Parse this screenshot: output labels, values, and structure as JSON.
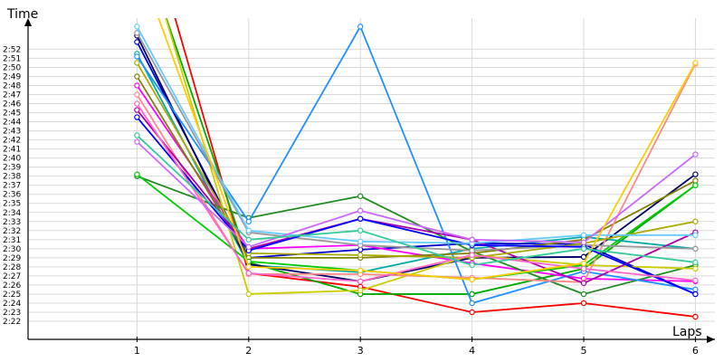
{
  "chart_data": {
    "type": "line",
    "ylabel": "Time",
    "xlabel": "Laps",
    "x": [
      1,
      2,
      3,
      4,
      5,
      6
    ],
    "x_ticks": [
      "1",
      "2",
      "3",
      "4",
      "5",
      "6"
    ],
    "y_ticks": [
      "2:22",
      "2:23",
      "2:24",
      "2:25",
      "2:26",
      "2:27",
      "2:28",
      "2:29",
      "2:30",
      "2:31",
      "2:32",
      "2:33",
      "2:34",
      "2:35",
      "2:36",
      "2:37",
      "2:38",
      "2:39",
      "2:40",
      "2:41",
      "2:42",
      "2:43",
      "2:44",
      "2:45",
      "2:46",
      "2:47",
      "2:48",
      "2:49",
      "2:50",
      "2:51",
      "2:52"
    ],
    "y_tick_values": [
      142,
      143,
      144,
      145,
      146,
      147,
      148,
      149,
      150,
      151,
      152,
      153,
      154,
      155,
      156,
      157,
      158,
      159,
      160,
      161,
      162,
      163,
      164,
      165,
      166,
      167,
      168,
      169,
      170,
      171,
      172
    ],
    "ylim": [
      141,
      175
    ],
    "grid": true,
    "legend": "none",
    "series": [
      {
        "color": "#ff0000",
        "values": [
          190,
          147.3,
          145.8,
          143.0,
          144.0,
          142.5
        ]
      },
      {
        "color": "#00aa00",
        "values": [
          185,
          148.5,
          145.0,
          145.0,
          147.8,
          157.0
        ]
      },
      {
        "color": "#00aaaa",
        "values": [
          171.5,
          148.2,
          147.4,
          150.0,
          151.3,
          150.0
        ]
      },
      {
        "color": "#0000cc",
        "values": [
          172.8,
          149.0,
          149.9,
          150.6,
          150.5,
          145.0
        ]
      },
      {
        "color": "#000066",
        "values": [
          173.5,
          148.3,
          146.4,
          149.0,
          149.1,
          158.2
        ]
      },
      {
        "color": "#ff00ff",
        "values": [
          168.0,
          150.0,
          150.4,
          148.4,
          146.7,
          146.4
        ]
      },
      {
        "color": "#228b22",
        "values": [
          158.0,
          153.4,
          155.8,
          149.7,
          145.0,
          148.2
        ]
      },
      {
        "color": "#cccc00",
        "values": [
          186,
          145.0,
          145.4,
          149.3,
          148.2,
          147.8
        ]
      },
      {
        "color": "#1e90ff",
        "values": [
          171.2,
          153.0,
          174.5,
          144.0,
          147.5,
          145.5
        ]
      },
      {
        "color": "#808000",
        "values": [
          169.0,
          149.0,
          149.0,
          149.5,
          151.0,
          157.5
        ]
      },
      {
        "color": "#ff8888",
        "values": [
          167.0,
          147.2,
          147.2,
          146.8,
          146.3,
          170.4
        ]
      },
      {
        "color": "#aa00aa",
        "values": [
          165.3,
          150.0,
          153.3,
          151.0,
          146.2,
          151.8
        ]
      },
      {
        "color": "#00cc00",
        "values": [
          158.2,
          148.6,
          147.6,
          146.6,
          148.2,
          157.0
        ]
      },
      {
        "color": "#999999",
        "values": [
          173.8,
          151.8,
          150.4,
          149.8,
          150.4,
          150.0
        ]
      },
      {
        "color": "#aaaa00",
        "values": [
          170.5,
          149.5,
          149.3,
          149.0,
          150.6,
          153.0
        ]
      },
      {
        "color": "#0000ff",
        "values": [
          164.5,
          149.8,
          153.3,
          150.4,
          150.2,
          145.0
        ]
      },
      {
        "color": "#66ccff",
        "values": [
          174.5,
          152.0,
          150.8,
          150.6,
          151.5,
          151.5
        ]
      },
      {
        "color": "#ff66cc",
        "values": [
          166.0,
          147.3,
          146.4,
          149.3,
          147.8,
          146.5
        ]
      },
      {
        "color": "#cc66ff",
        "values": [
          161.8,
          150.2,
          154.2,
          151.0,
          150.7,
          160.4
        ]
      },
      {
        "color": "#ffcc00",
        "values": [
          182,
          148.0,
          147.6,
          146.6,
          148.4,
          170.5
        ]
      },
      {
        "color": "#33cc99",
        "values": [
          162.5,
          151.0,
          152.0,
          148.2,
          150.0,
          148.5
        ]
      }
    ]
  }
}
